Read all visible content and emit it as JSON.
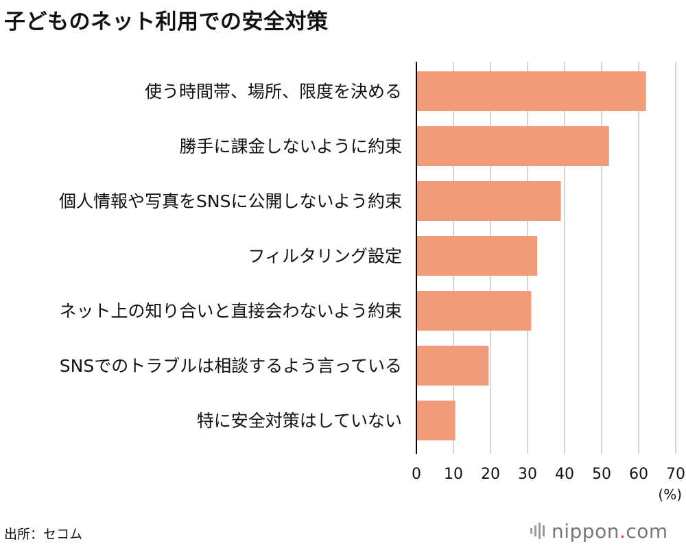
{
  "title": "子どものネット利用での安全対策",
  "source": "出所：セコム",
  "logo": {
    "prefix": "nippon",
    "dot": ".",
    "suffix": "com"
  },
  "colors": {
    "bar": "#f09c7b",
    "grid": "#c8c8c8",
    "axis": "#000000",
    "logo_dot": "#e4452a"
  },
  "chart_data": {
    "type": "bar",
    "orientation": "horizontal",
    "title": "子どものネット利用での安全対策",
    "categories": [
      "使う時間帯、場所、限度を決める",
      "勝手に課金しないように約束",
      "個人情報や写真をSNSに公開しないよう約束",
      "フィルタリング設定",
      "ネット上の知り合いと直接会わないよう約束",
      "SNSでのトラブルは相談するよう言っている",
      "特に安全対策はしていない"
    ],
    "values": [
      62,
      52,
      39,
      32.6,
      31,
      19.5,
      10.5
    ],
    "xlim": [
      0,
      70
    ],
    "ticks": [
      0,
      10,
      20,
      30,
      40,
      50,
      60,
      70
    ],
    "tick_labels": [
      "0",
      "10",
      "20",
      "30",
      "40",
      "50",
      "60",
      "70"
    ],
    "unit": "(%)",
    "grid": true
  }
}
